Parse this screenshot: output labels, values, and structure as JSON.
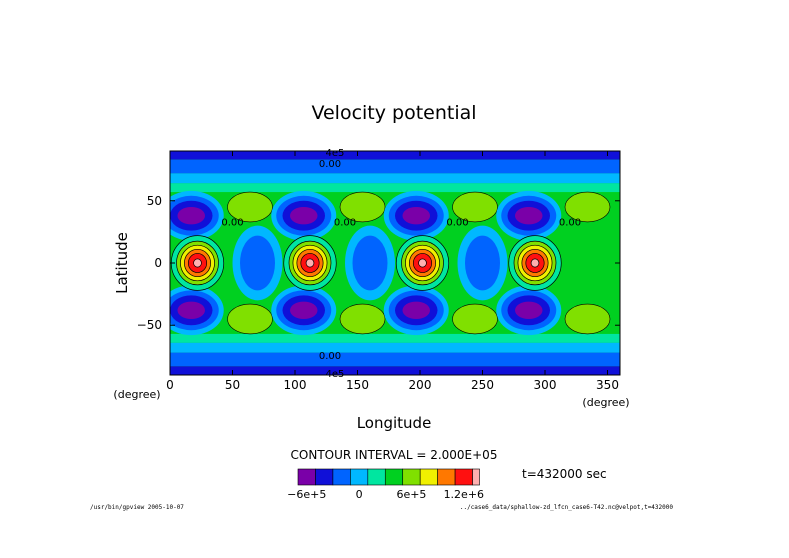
{
  "chart_data": {
    "type": "heatmap",
    "title": "Velocity potential",
    "xlabel": "Longitude",
    "ylabel": "Latitude",
    "x_unit": "(degree)",
    "y_unit": "(degree)",
    "xlim": [
      0,
      360
    ],
    "ylim": [
      -90,
      90
    ],
    "x_ticks": [
      0,
      50,
      100,
      150,
      200,
      250,
      300,
      350
    ],
    "y_ticks": [
      50,
      0,
      -50
    ],
    "x_tick_labels": [
      "0",
      "50",
      "100",
      "150",
      "200",
      "250",
      "300",
      "350"
    ],
    "y_tick_labels": [
      "50",
      "0",
      "−50"
    ],
    "contour_interval_text": "CONTOUR INTERVAL = 2.000E+05",
    "time_text": "t=432000 sec",
    "max_label": "4e5",
    "min_label": "4e5",
    "contour_labels": [
      "0.00",
      "0.00",
      "0.00",
      "0.00",
      "0.00",
      "0.00"
    ],
    "colorbar": {
      "colors": [
        "#7a00a8",
        "#1010d8",
        "#0064ff",
        "#00b8ff",
        "#00e6a0",
        "#00d020",
        "#80e000",
        "#f0f000",
        "#ff7800",
        "#ff1010",
        "#ffb0b0"
      ],
      "tick_labels": [
        "−6e+5",
        "0",
        "6e+5",
        "1.2e+6"
      ]
    },
    "field_pattern": {
      "wave_centers_lon": [
        22,
        112,
        202,
        292
      ],
      "peak_lat": 0,
      "min_lat": [
        38,
        -38
      ]
    }
  },
  "footer": {
    "left": "/usr/bin/gpview  2005-10-07",
    "right": "../case6_data/sphallow-zd_lfcn_case6-T42.nc@velpot,t=432000"
  }
}
